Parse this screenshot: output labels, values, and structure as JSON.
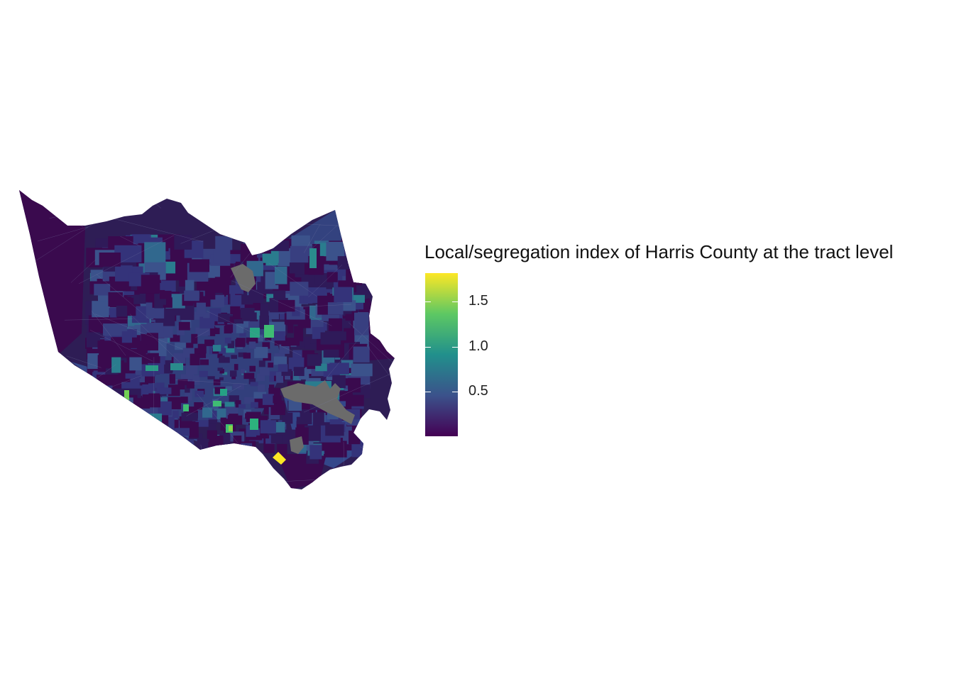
{
  "legend": {
    "title": "Local/segregation index of Harris County at the tract level",
    "ticks": [
      "0.5",
      "1.0",
      "1.5"
    ],
    "tick_values": [
      0.5,
      1.0,
      1.5
    ],
    "range": [
      0.0,
      1.82
    ],
    "palette": [
      "#440154",
      "#3b528b",
      "#21908c",
      "#5dc863",
      "#fde725"
    ]
  },
  "map": {
    "region": "Harris County",
    "missing_color": "#6b6b6b",
    "dominant_colors": [
      "#3a0b4f",
      "#2e2559",
      "#353d78",
      "#3b5a8c",
      "#2a8b8c"
    ]
  }
}
